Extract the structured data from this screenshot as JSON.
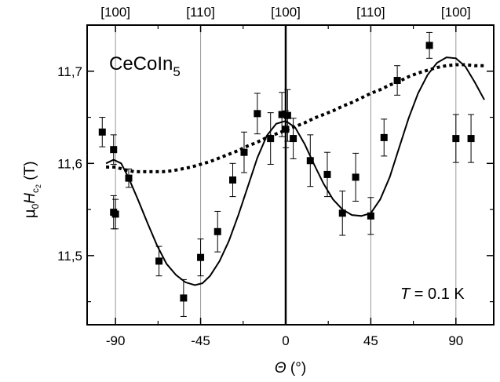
{
  "chart_data": {
    "type": "scatter",
    "xlabel": "Θ (°)",
    "ylabel": "μ0Hc2 (T)",
    "xlim": [
      -105,
      110
    ],
    "ylim": [
      11.425,
      11.75
    ],
    "x_ticks": [
      -90,
      -45,
      0,
      45,
      90
    ],
    "x_tick_labels": [
      "-90",
      "-45",
      "0",
      "45",
      "90"
    ],
    "y_ticks": [
      11.5,
      11.6,
      11.7
    ],
    "y_tick_labels": [
      "11,5",
      "11,6",
      "11,7"
    ],
    "top_ticks": [
      -90,
      -45,
      0,
      45,
      90
    ],
    "top_tick_labels": [
      "[100]",
      "[110]",
      "[100]",
      "[110]",
      "[100]"
    ],
    "annotations": {
      "compound": {
        "main": "CeCoIn",
        "sub": "5"
      },
      "temperature": {
        "symbol": "T",
        "value": " = 0.1 K"
      }
    },
    "grid": "vertical lines at -90, -45, 45, 90; thick line at 0",
    "series": [
      {
        "style": "markers-with-error-bars",
        "x": [
          -97,
          -91,
          -91,
          -90,
          -83,
          -67,
          -54,
          -45,
          -36,
          -28,
          -22,
          -15,
          -8,
          -2,
          0,
          1,
          4,
          13,
          22,
          30,
          37,
          45,
          52,
          59,
          76,
          90,
          98
        ],
        "y": [
          11.634,
          11.615,
          11.547,
          11.545,
          11.584,
          11.494,
          11.454,
          11.498,
          11.526,
          11.582,
          11.612,
          11.654,
          11.627,
          11.653,
          11.637,
          11.652,
          11.627,
          11.603,
          11.588,
          11.546,
          11.585,
          11.543,
          11.628,
          11.69,
          11.728,
          11.627,
          11.627
        ],
        "err": [
          0.016,
          0.016,
          0.018,
          0.016,
          0.01,
          0.016,
          0.02,
          0.02,
          0.022,
          0.018,
          0.022,
          0.022,
          0.028,
          0.024,
          0.02,
          0.028,
          0.022,
          0.028,
          0.024,
          0.024,
          0.026,
          0.02,
          0.02,
          0.016,
          0.014,
          0.026,
          0.026
        ]
      },
      {
        "style": "solid-line-fit",
        "x": [
          -95,
          -91,
          -87,
          -83,
          -78,
          -73,
          -68,
          -63,
          -58,
          -53,
          -48,
          -44,
          -40,
          -35,
          -30,
          -25,
          -20,
          -15,
          -10,
          -5,
          0,
          5,
          10,
          15,
          20,
          25,
          30,
          35,
          40,
          45,
          50,
          55,
          60,
          65,
          70,
          75,
          80,
          85,
          90,
          95,
          100,
          105
        ],
        "y": [
          11.6,
          11.604,
          11.6,
          11.584,
          11.56,
          11.535,
          11.511,
          11.491,
          11.479,
          11.471,
          11.468,
          11.47,
          11.478,
          11.494,
          11.516,
          11.544,
          11.575,
          11.606,
          11.63,
          11.643,
          11.646,
          11.639,
          11.621,
          11.599,
          11.578,
          11.561,
          11.55,
          11.544,
          11.543,
          11.546,
          11.561,
          11.585,
          11.617,
          11.649,
          11.676,
          11.696,
          11.709,
          11.715,
          11.714,
          11.705,
          11.688,
          11.669
        ]
      },
      {
        "style": "dotted-line-fit",
        "x": [
          -95,
          -90,
          -85,
          -80,
          -75,
          -70,
          -65,
          -60,
          -55,
          -50,
          -45,
          -40,
          -35,
          -30,
          -25,
          -20,
          -15,
          -10,
          -5,
          0,
          5,
          10,
          15,
          20,
          25,
          30,
          35,
          40,
          45,
          50,
          55,
          60,
          65,
          70,
          75,
          80,
          85,
          90,
          95,
          100,
          105
        ],
        "y": [
          11.596,
          11.596,
          11.593,
          11.591,
          11.591,
          11.591,
          11.591,
          11.592,
          11.594,
          11.596,
          11.599,
          11.602,
          11.606,
          11.61,
          11.614,
          11.619,
          11.623,
          11.628,
          11.632,
          11.636,
          11.64,
          11.644,
          11.649,
          11.653,
          11.657,
          11.662,
          11.666,
          11.671,
          11.676,
          11.68,
          11.685,
          11.689,
          11.694,
          11.698,
          11.701,
          11.704,
          11.706,
          11.707,
          11.707,
          11.706,
          11.706
        ]
      }
    ]
  }
}
